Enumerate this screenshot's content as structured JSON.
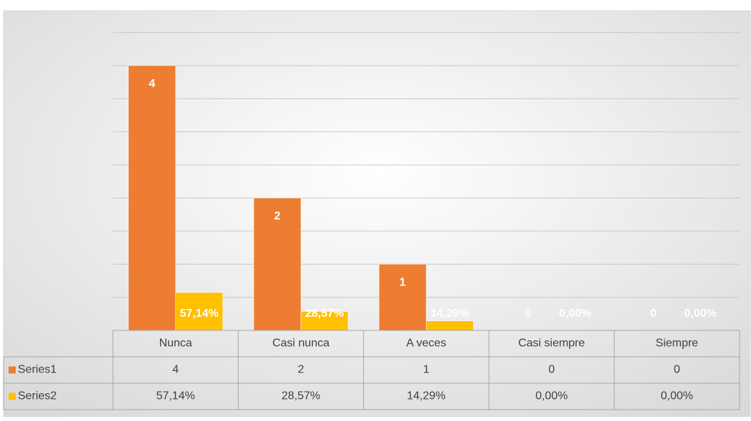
{
  "chart_data": {
    "type": "bar",
    "categories": [
      "Nunca",
      "Casi nunca",
      "A veces",
      "Casi siempre",
      "Siempre"
    ],
    "series": [
      {
        "name": "Series1",
        "color": "#ed7d31",
        "values": [
          4,
          2,
          1,
          0,
          0
        ]
      },
      {
        "name": "Series2",
        "color": "#ffc000",
        "values": [
          0.5714,
          0.2857,
          0.1429,
          0,
          0
        ],
        "value_labels": [
          "57,14%",
          "28,57%",
          "14,29%",
          "0,00%",
          "0,00%"
        ]
      }
    ],
    "ylim": [
      0,
      4.5
    ],
    "yticks": [
      0,
      0.5,
      1,
      1.5,
      2,
      2.5,
      3,
      3.5,
      4,
      4.5
    ],
    "grid": true
  }
}
